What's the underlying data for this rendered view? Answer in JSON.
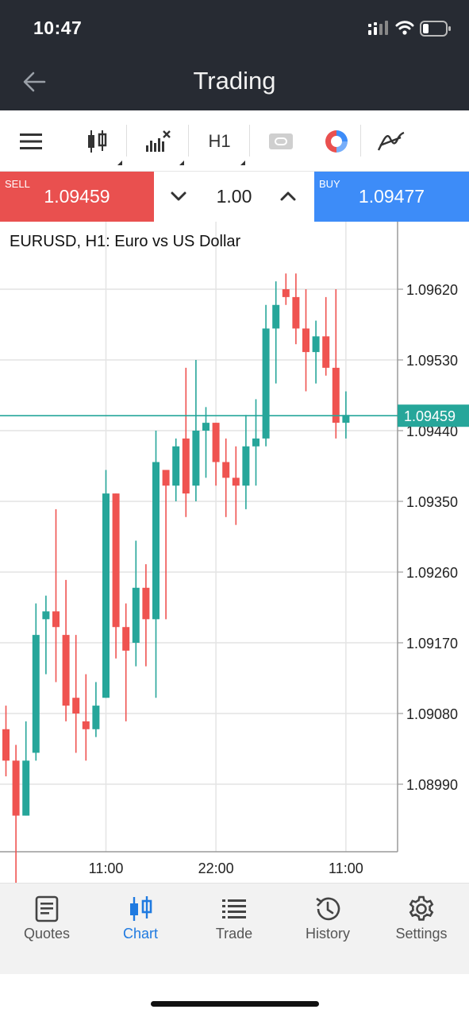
{
  "status": {
    "time": "10:47"
  },
  "header": {
    "title": "Trading"
  },
  "toolbar": {
    "timeframe": "H1"
  },
  "trade": {
    "sell_label": "SELL",
    "sell_price": "1.09459",
    "volume": "1.00",
    "buy_label": "BUY",
    "buy_price": "1.09477"
  },
  "chart_title": "EURUSD, H1: Euro vs US Dollar",
  "colors": {
    "bull": "#26a69a",
    "bear": "#ef5350",
    "accent": "#1f7ae0",
    "sell": "#e9504f",
    "buy": "#3d8cf8"
  },
  "chart_data": {
    "type": "candlestick",
    "title": "EURUSD, H1: Euro vs US Dollar",
    "y_ticks": [
      "1.09620",
      "1.09530",
      "1.09440",
      "1.09350",
      "1.09260",
      "1.09170",
      "1.09080",
      "1.08990"
    ],
    "y_tick_values": [
      1.0962,
      1.0953,
      1.0944,
      1.0935,
      1.0926,
      1.0917,
      1.0908,
      1.0899
    ],
    "x_ticks": [
      "11:00",
      "22:00",
      "11:00"
    ],
    "x_tick_index": [
      10,
      21,
      34
    ],
    "current_price": 1.09459,
    "current_price_label": "1.09459",
    "candles": [
      {
        "o": 1.0906,
        "h": 1.0909,
        "l": 1.09,
        "c": 1.0902
      },
      {
        "o": 1.0902,
        "h": 1.0904,
        "l": 1.0886,
        "c": 1.0895
      },
      {
        "o": 1.0895,
        "h": 1.0907,
        "l": 1.0895,
        "c": 1.0902
      },
      {
        "o": 1.0903,
        "h": 1.0922,
        "l": 1.0902,
        "c": 1.0918
      },
      {
        "o": 1.092,
        "h": 1.0923,
        "l": 1.0913,
        "c": 1.0921
      },
      {
        "o": 1.0921,
        "h": 1.0934,
        "l": 1.0912,
        "c": 1.0919
      },
      {
        "o": 1.0918,
        "h": 1.0925,
        "l": 1.0907,
        "c": 1.0909
      },
      {
        "o": 1.091,
        "h": 1.0918,
        "l": 1.0903,
        "c": 1.0908
      },
      {
        "o": 1.0907,
        "h": 1.0913,
        "l": 1.0902,
        "c": 1.0906
      },
      {
        "o": 1.0906,
        "h": 1.0912,
        "l": 1.0905,
        "c": 1.0909
      },
      {
        "o": 1.091,
        "h": 1.0939,
        "l": 1.091,
        "c": 1.0936
      },
      {
        "o": 1.0936,
        "h": 1.0936,
        "l": 1.0915,
        "c": 1.0919
      },
      {
        "o": 1.0919,
        "h": 1.0922,
        "l": 1.0907,
        "c": 1.0916
      },
      {
        "o": 1.0917,
        "h": 1.093,
        "l": 1.0914,
        "c": 1.0924
      },
      {
        "o": 1.0924,
        "h": 1.0927,
        "l": 1.0914,
        "c": 1.092
      },
      {
        "o": 1.092,
        "h": 1.0944,
        "l": 1.091,
        "c": 1.094
      },
      {
        "o": 1.0939,
        "h": 1.0939,
        "l": 1.092,
        "c": 1.0937
      },
      {
        "o": 1.0937,
        "h": 1.0943,
        "l": 1.0935,
        "c": 1.0942
      },
      {
        "o": 1.0943,
        "h": 1.0952,
        "l": 1.0933,
        "c": 1.0936
      },
      {
        "o": 1.0937,
        "h": 1.0953,
        "l": 1.0935,
        "c": 1.0944
      },
      {
        "o": 1.0944,
        "h": 1.0947,
        "l": 1.0938,
        "c": 1.0945
      },
      {
        "o": 1.0945,
        "h": 1.0945,
        "l": 1.0937,
        "c": 1.094
      },
      {
        "o": 1.094,
        "h": 1.0943,
        "l": 1.0933,
        "c": 1.0938
      },
      {
        "o": 1.0938,
        "h": 1.0942,
        "l": 1.0932,
        "c": 1.0937
      },
      {
        "o": 1.0937,
        "h": 1.0946,
        "l": 1.0934,
        "c": 1.0942
      },
      {
        "o": 1.0942,
        "h": 1.0948,
        "l": 1.0937,
        "c": 1.0943
      },
      {
        "o": 1.0943,
        "h": 1.096,
        "l": 1.0942,
        "c": 1.0957
      },
      {
        "o": 1.0957,
        "h": 1.0963,
        "l": 1.095,
        "c": 1.096
      },
      {
        "o": 1.0962,
        "h": 1.0964,
        "l": 1.096,
        "c": 1.0961
      },
      {
        "o": 1.0961,
        "h": 1.0964,
        "l": 1.0955,
        "c": 1.0957
      },
      {
        "o": 1.0957,
        "h": 1.0962,
        "l": 1.0949,
        "c": 1.0954
      },
      {
        "o": 1.0954,
        "h": 1.0958,
        "l": 1.095,
        "c": 1.0956
      },
      {
        "o": 1.0956,
        "h": 1.0961,
        "l": 1.0951,
        "c": 1.0952
      },
      {
        "o": 1.0952,
        "h": 1.0962,
        "l": 1.0943,
        "c": 1.0945
      },
      {
        "o": 1.0945,
        "h": 1.0949,
        "l": 1.0943,
        "c": 1.0946
      }
    ]
  },
  "nav": [
    {
      "label": "Quotes",
      "icon": "quotes-icon"
    },
    {
      "label": "Chart",
      "icon": "chart-icon"
    },
    {
      "label": "Trade",
      "icon": "trade-icon"
    },
    {
      "label": "History",
      "icon": "history-icon"
    },
    {
      "label": "Settings",
      "icon": "settings-icon"
    }
  ]
}
